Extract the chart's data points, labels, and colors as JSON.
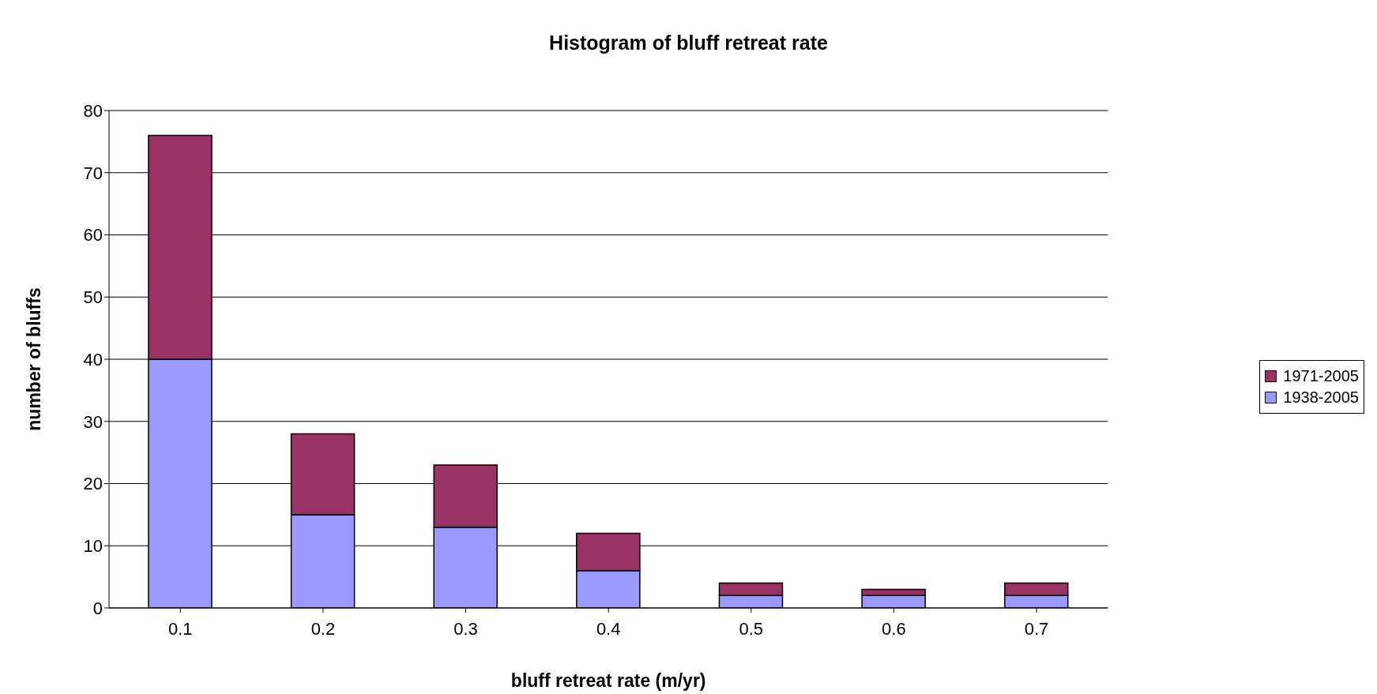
{
  "chart_data": {
    "type": "bar",
    "title": "Histogram of bluff retreat rate",
    "xlabel": "bluff retreat rate (m/yr)",
    "ylabel": "number of bluffs",
    "categories": [
      "0.1",
      "0.2",
      "0.3",
      "0.4",
      "0.5",
      "0.6",
      "0.7"
    ],
    "stacked": true,
    "series": [
      {
        "name": "1938-2005",
        "color": "#9999ff",
        "values": [
          40,
          15,
          13,
          6,
          2,
          2,
          2
        ]
      },
      {
        "name": "1971-2005",
        "color": "#993366",
        "values": [
          36,
          13,
          10,
          6,
          2,
          1,
          2
        ]
      }
    ],
    "ylim": [
      0,
      80
    ],
    "yticks": [
      0,
      10,
      20,
      30,
      40,
      50,
      60,
      70,
      80
    ],
    "grid": "y",
    "legend": "right"
  }
}
